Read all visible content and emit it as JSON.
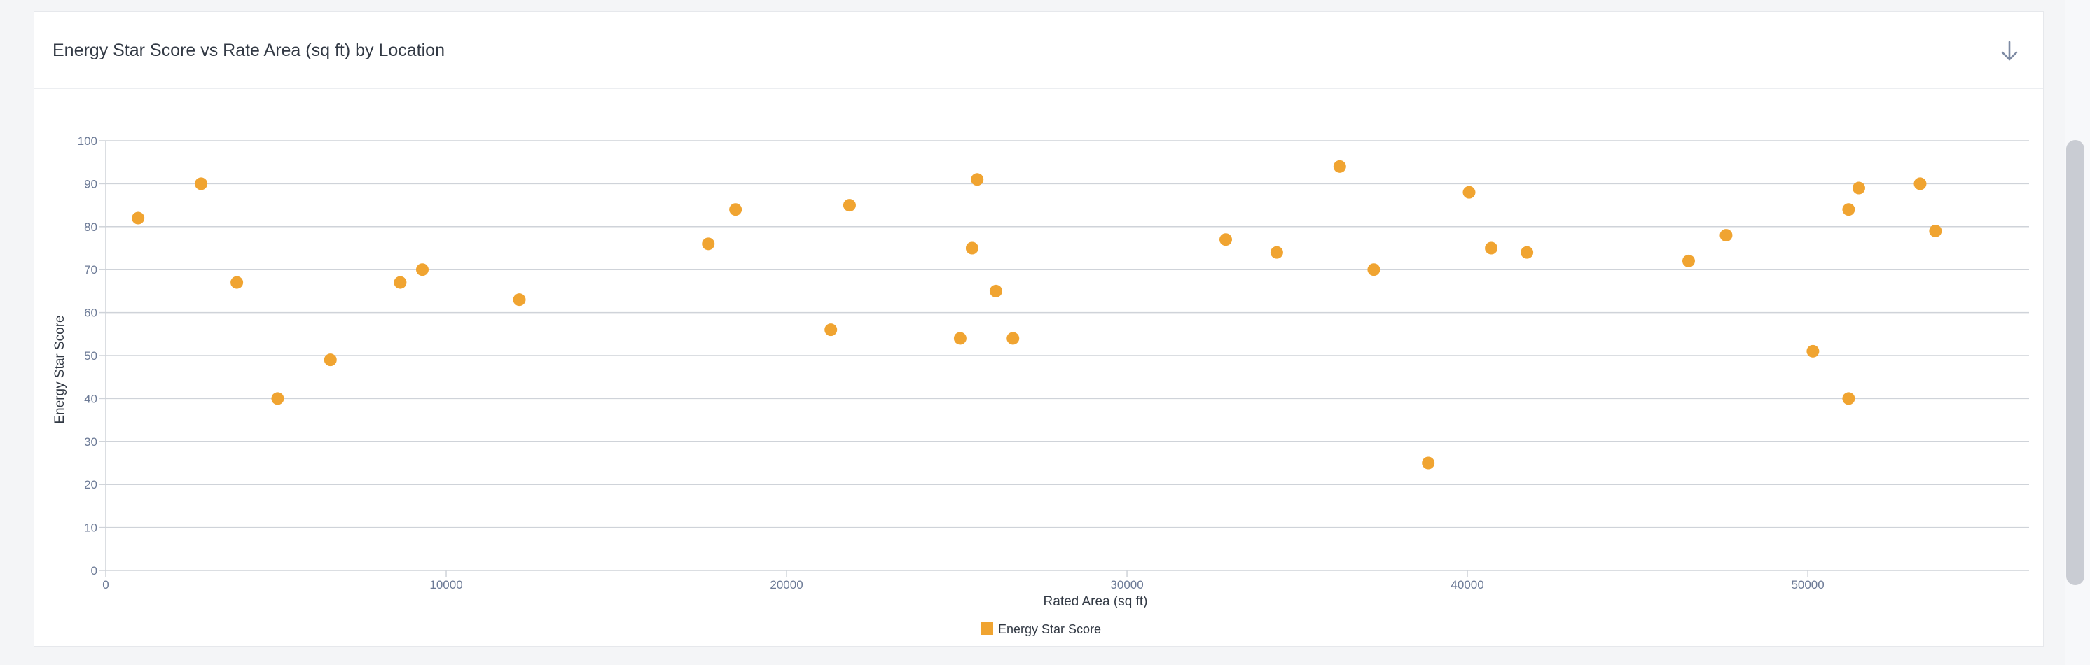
{
  "card": {
    "title": "Energy Star Score vs Rate Area (sq ft) by Location",
    "download_icon": "download-arrow-icon"
  },
  "colors": {
    "point": "#f0a431",
    "grid": "#cfd3d9",
    "axis_text": "#6c7a96",
    "label_text": "#333a45"
  },
  "chart_data": {
    "type": "scatter",
    "title": "Energy Star Score vs Rate Area (sq ft) by Location",
    "xlabel": "Rated Area (sq ft)",
    "ylabel": "Energy Star Score",
    "xlim": [
      0,
      56500
    ],
    "ylim": [
      0,
      100
    ],
    "x_ticks": [
      0,
      10000,
      20000,
      30000,
      40000,
      50000
    ],
    "y_ticks": [
      0,
      10,
      20,
      30,
      40,
      50,
      60,
      70,
      80,
      90,
      100
    ],
    "grid": true,
    "legend_position": "bottom-center",
    "series": [
      {
        "name": "Energy Star Score",
        "color": "#f0a431",
        "points": [
          {
            "x": 950,
            "y": 82
          },
          {
            "x": 2800,
            "y": 90
          },
          {
            "x": 3850,
            "y": 67
          },
          {
            "x": 5050,
            "y": 40
          },
          {
            "x": 6600,
            "y": 49
          },
          {
            "x": 8650,
            "y": 67
          },
          {
            "x": 9300,
            "y": 70
          },
          {
            "x": 12150,
            "y": 63
          },
          {
            "x": 17700,
            "y": 76
          },
          {
            "x": 18500,
            "y": 84
          },
          {
            "x": 21300,
            "y": 56
          },
          {
            "x": 21850,
            "y": 85
          },
          {
            "x": 25100,
            "y": 54
          },
          {
            "x": 25450,
            "y": 75
          },
          {
            "x": 25600,
            "y": 91
          },
          {
            "x": 26150,
            "y": 65
          },
          {
            "x": 26650,
            "y": 54
          },
          {
            "x": 32900,
            "y": 77
          },
          {
            "x": 34400,
            "y": 74
          },
          {
            "x": 36250,
            "y": 94
          },
          {
            "x": 37250,
            "y": 70
          },
          {
            "x": 38850,
            "y": 25
          },
          {
            "x": 40050,
            "y": 88
          },
          {
            "x": 40700,
            "y": 75
          },
          {
            "x": 41750,
            "y": 74
          },
          {
            "x": 46500,
            "y": 72
          },
          {
            "x": 47600,
            "y": 78
          },
          {
            "x": 50150,
            "y": 51
          },
          {
            "x": 51200,
            "y": 84
          },
          {
            "x": 51200,
            "y": 40
          },
          {
            "x": 51500,
            "y": 89
          },
          {
            "x": 53300,
            "y": 90
          },
          {
            "x": 53750,
            "y": 79
          }
        ]
      }
    ]
  }
}
